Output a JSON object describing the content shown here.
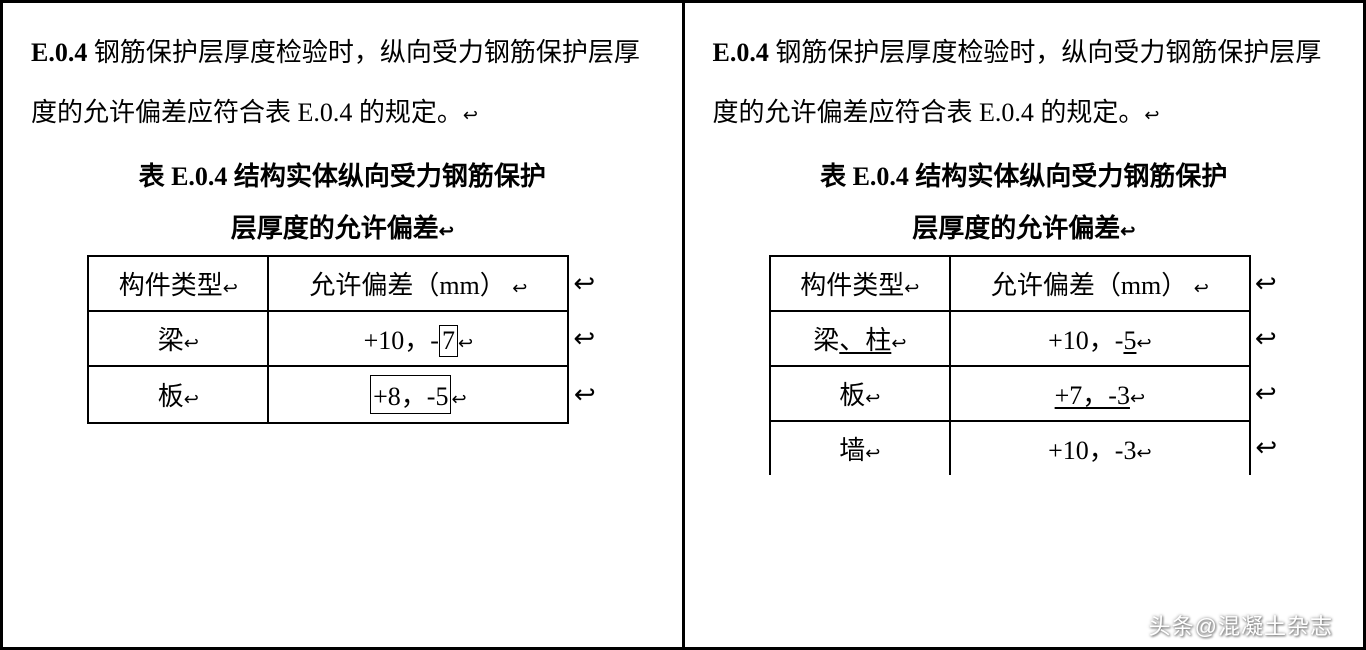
{
  "left": {
    "clause_num": "E.0.4",
    "paragraph_text": "  钢筋保护层厚度检验时，纵向受力钢筋保护层厚度的允许偏差应符合表 E.0.4 的规定。",
    "return_glyph": "↩",
    "table_title_line1": "表 E.0.4    结构实体纵向受力钢筋保护",
    "table_title_line2": "层厚度的允许偏差",
    "headers": {
      "c1": "构件类型",
      "c2": "允许偏差（mm）"
    },
    "rows": [
      {
        "c1": "梁",
        "c2_pre": "+10，-",
        "c2_box": "7"
      },
      {
        "c1": "板",
        "c2_box": "+8，-5"
      }
    ]
  },
  "right": {
    "clause_num": "E.0.4",
    "paragraph_text": "  钢筋保护层厚度检验时，纵向受力钢筋保护层厚度的允许偏差应符合表 E.0.4 的规定。",
    "return_glyph": "↩",
    "table_title_line1": "表 E.0.4    结构实体纵向受力钢筋保护",
    "table_title_line2": "层厚度的允许偏差",
    "headers": {
      "c1": "构件类型",
      "c2": "允许偏差（mm）"
    },
    "rows": [
      {
        "c1_pre": "梁",
        "c1_ul": "、柱",
        "c2_pre": "+10，-",
        "c2_ul": "5"
      },
      {
        "c1": "板",
        "c2_ul": "+7，-3"
      },
      {
        "c1": "墙",
        "c2_mix_pre": "+",
        "c2_mix_mid": "10",
        "c2_mix_post": "，-3"
      }
    ]
  },
  "watermark": "头条@混凝土杂志"
}
